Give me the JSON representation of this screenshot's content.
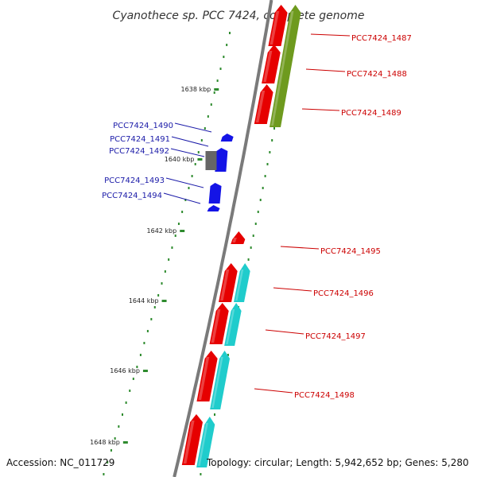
{
  "title": "Cyanothece sp. PCC 7424, complete genome",
  "footer": {
    "accession": "Accession: NC_011729",
    "summary": "Topology: circular; Length: 5,942,652 bp; Genes: 5,280"
  },
  "colors": {
    "backbone": "#7a7a7a",
    "tick": "#2e8b2e",
    "forward_cds": "#e60000",
    "reverse_cds": "#1414e6",
    "other_gene": "#666666",
    "cyan_track": "#20cccc",
    "olive_track": "#6e9a1e",
    "label_red": "#cc0000",
    "label_blue": "#1a1aa8"
  },
  "scale_labels": [
    "1638 kbp",
    "1640 kbp",
    "1642 kbp",
    "1644 kbp",
    "1646 kbp",
    "1648 kbp"
  ],
  "genes": [
    {
      "id": "PCC7424_1487",
      "strand": "+"
    },
    {
      "id": "PCC7424_1488",
      "strand": "+"
    },
    {
      "id": "PCC7424_1489",
      "strand": "+"
    },
    {
      "id": "PCC7424_1490",
      "strand": "-"
    },
    {
      "id": "PCC7424_1491",
      "strand": "-"
    },
    {
      "id": "PCC7424_1492",
      "strand": "-"
    },
    {
      "id": "PCC7424_1493",
      "strand": "-"
    },
    {
      "id": "PCC7424_1494",
      "strand": "-"
    },
    {
      "id": "PCC7424_1495",
      "strand": "+"
    },
    {
      "id": "PCC7424_1496",
      "strand": "+"
    },
    {
      "id": "PCC7424_1497",
      "strand": "+"
    },
    {
      "id": "PCC7424_1498",
      "strand": "+"
    }
  ]
}
